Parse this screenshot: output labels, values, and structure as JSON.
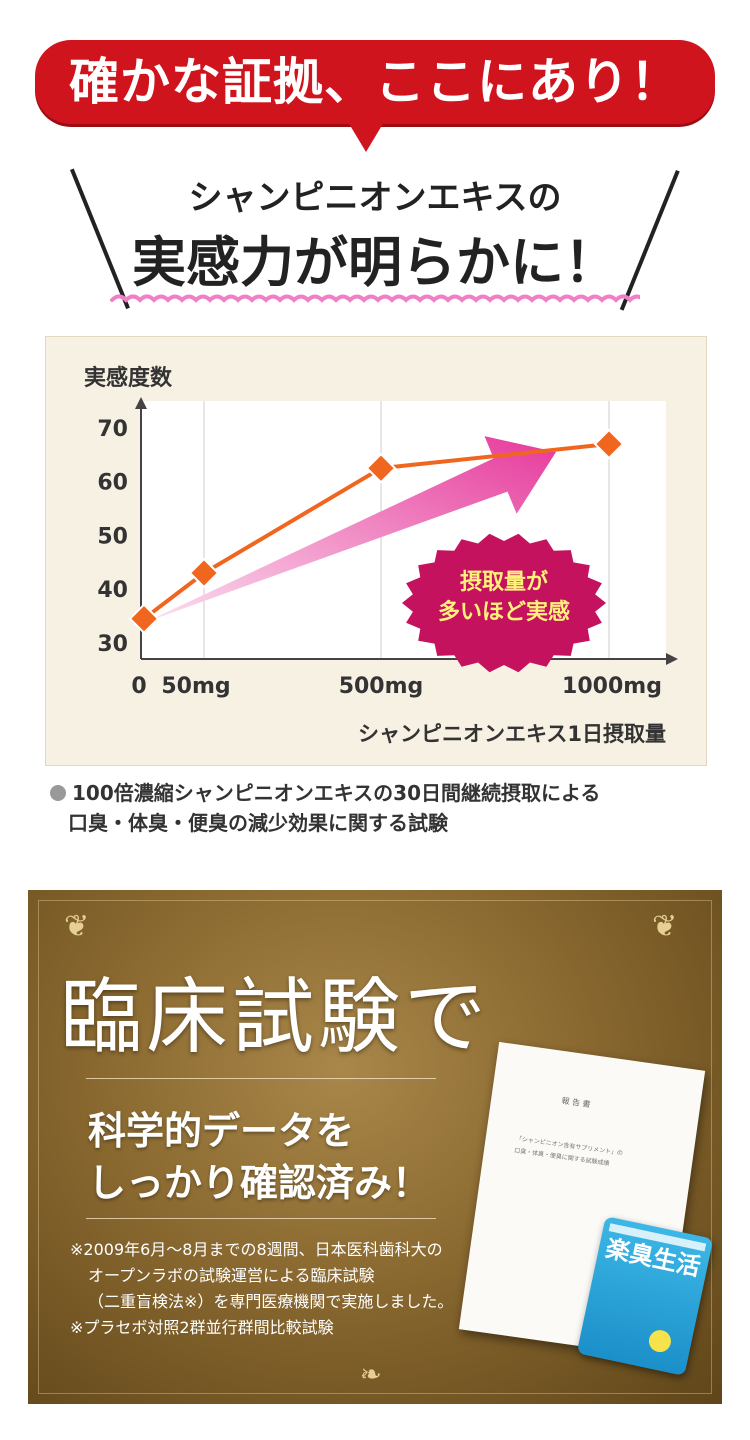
{
  "banner": {
    "title": "確かな証拠、ここにあり！",
    "color": "#d0141d"
  },
  "headline": {
    "line1": "シャンピニオンエキスの",
    "line2": "実感力が明らかに！",
    "wave_color": "#f07fc8"
  },
  "chart_data": {
    "type": "line",
    "ylabel": "実感度数",
    "xlabel": "シャンピニオンエキス1日摂取量",
    "y_ticks": [
      "70",
      "60",
      "50",
      "40",
      "30"
    ],
    "y_tick_values": [
      70,
      60,
      50,
      40,
      30
    ],
    "x_ticks": [
      "0",
      "50mg",
      "500mg",
      "1000mg"
    ],
    "x": [
      0,
      50,
      500,
      1000
    ],
    "values": [
      34.5,
      43,
      62.5,
      67
    ],
    "ylim": [
      27,
      75
    ],
    "line_color": "#f0661f",
    "marker_color": "#f0661f",
    "arrow_color": "#e6399b",
    "callout": {
      "line1": "摂取量が",
      "line2": "多いほど実感",
      "color": "#c4125f",
      "text_color": "#fff27a"
    },
    "grid": "vertical"
  },
  "note": {
    "line1": "100倍濃縮シャンピニオンエキスの30日間継続摂取による",
    "line2": "口臭・体臭・便臭の減少効果に関する試験"
  },
  "clinical": {
    "title": "臨床試験で",
    "line1": "科学的データを",
    "line2": "しっかり確認済み！",
    "fine1": "※2009年6月〜8月までの8週間、日本医科歯科大の",
    "fine2": "オープンラボの試験運営による臨床試験",
    "fine3": "（二重盲検法※）を専門医療機関で実施しました。",
    "fine4": "※プラセボ対照2群並行群間比較試験"
  },
  "document": {
    "title": "報 告 書",
    "line1": "「シャンピニオン含有サプリメント」の",
    "line2": "口臭・体臭・便臭に関する試験成績"
  },
  "product": {
    "name": "楽臭生活"
  }
}
